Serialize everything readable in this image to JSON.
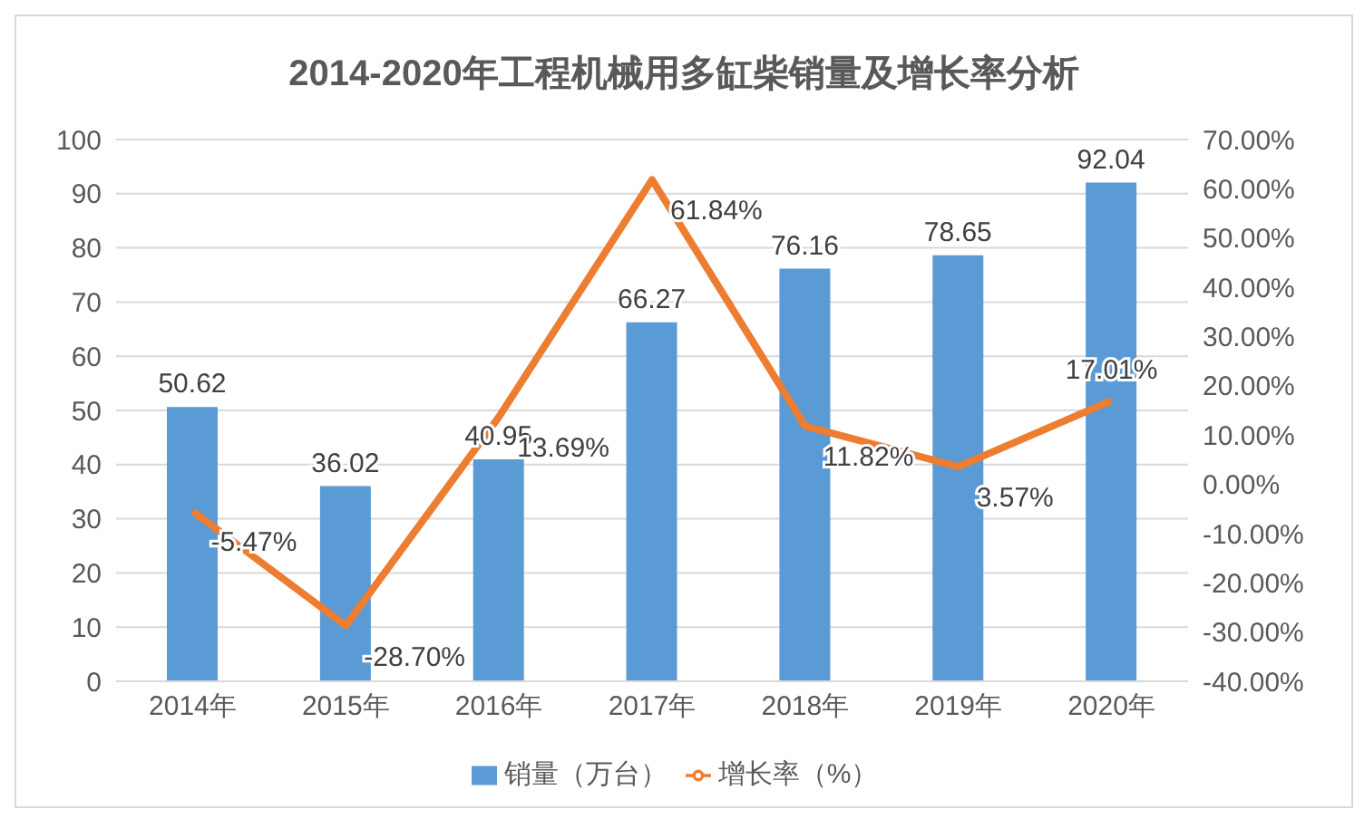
{
  "chart_data": {
    "type": "bar",
    "title": "2014-2020年工程机械用多缸柴销量及增长率分析",
    "categories": [
      "2014年",
      "2015年",
      "2016年",
      "2017年",
      "2018年",
      "2019年",
      "2020年"
    ],
    "series": [
      {
        "name": "销量（万台）",
        "color": "#5b9bd5",
        "values": [
          50.62,
          36.02,
          40.95,
          66.27,
          76.16,
          78.65,
          92.04
        ],
        "value_labels": [
          "50.62",
          "36.02",
          "40.95",
          "66.27",
          "76.16",
          "78.65",
          "92.04"
        ]
      },
      {
        "name": "增长率（%）",
        "type": "line",
        "axis": "y2",
        "color": "#ed7d31",
        "values": [
          -5.47,
          -28.7,
          13.69,
          61.84,
          11.82,
          3.57,
          17.01
        ],
        "value_labels": [
          "-5.47%",
          "-28.70%",
          "13.69%",
          "61.84%",
          "11.82%",
          "3.57%",
          "17.01%"
        ]
      }
    ],
    "ylim": [
      0,
      100
    ],
    "yticks": [
      0,
      10,
      20,
      30,
      40,
      50,
      60,
      70,
      80,
      90,
      100
    ],
    "y2lim": [
      -40,
      70
    ],
    "y2ticks": [
      {
        "value": -40,
        "label": "-40.00%"
      },
      {
        "value": -30,
        "label": "-30.00%"
      },
      {
        "value": -20,
        "label": "-20.00%"
      },
      {
        "value": -10,
        "label": "-10.00%"
      },
      {
        "value": 0,
        "label": "0.00%"
      },
      {
        "value": 10,
        "label": "10.00%"
      },
      {
        "value": 20,
        "label": "20.00%"
      },
      {
        "value": 30,
        "label": "30.00%"
      },
      {
        "value": 40,
        "label": "40.00%"
      },
      {
        "value": 50,
        "label": "50.00%"
      },
      {
        "value": 60,
        "label": "60.00%"
      },
      {
        "value": 70,
        "label": "70.00%"
      }
    ],
    "grid": "y",
    "legend": "bottom",
    "marker": "none",
    "line_style": "solid"
  }
}
